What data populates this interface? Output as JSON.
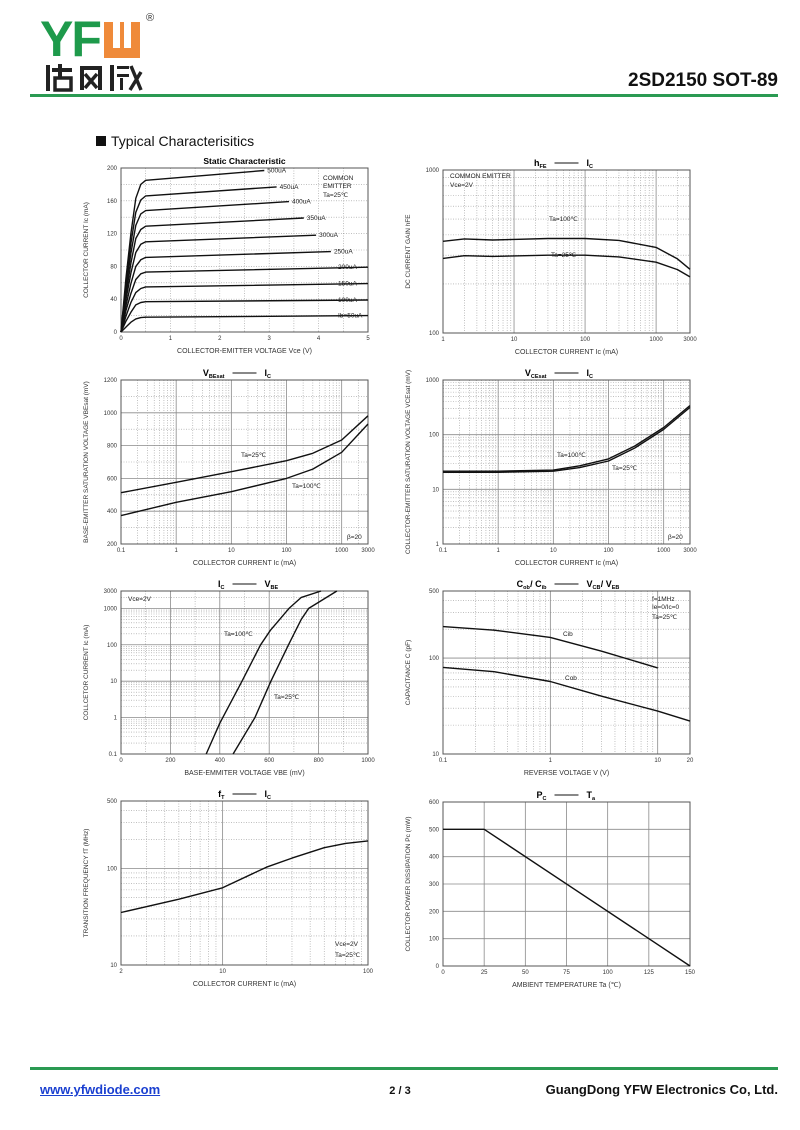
{
  "header": {
    "logo": {
      "latin": "YF",
      "mark": "W",
      "cjk": "佑风微",
      "registered": "®"
    },
    "part_title": "2SD2150  SOT-89",
    "accent_color": "#2a9a52"
  },
  "section_title": "Typical  Characterisitics",
  "footer": {
    "website": "www.yfwdiode.com",
    "page": "2 / 3",
    "company": "GuangDong YFW Electronics Co, Ltd."
  },
  "chart_data": [
    {
      "type": "line",
      "title": {
        "plain": "Static Characteristic"
      },
      "xlabel": "COLLECTOR-EMITTER VOLTAGE   Vce   (V)",
      "ylabel": "COLLECTOR CURRENT   Ic   (mA)",
      "xscale": "linear",
      "yscale": "linear",
      "xlim": [
        0,
        5
      ],
      "ylim": [
        0,
        200
      ],
      "xticks": [
        0,
        1,
        2,
        3,
        4,
        5
      ],
      "xtick_labels": [
        "0",
        "1",
        "2",
        "3",
        "4",
        "5"
      ],
      "yticks": [
        0,
        40,
        80,
        120,
        160,
        200
      ],
      "ytick_labels": [
        "0",
        "40",
        "80",
        "120",
        "160",
        "200"
      ],
      "grid": "dotted",
      "annotations": [
        "COMMON",
        "EMITTER",
        "Ta=25℃"
      ],
      "series": [
        {
          "name": "500uA",
          "points": [
            [
              0,
              0
            ],
            [
              0.1,
              65
            ],
            [
              0.2,
              120
            ],
            [
              0.3,
              163
            ],
            [
              0.4,
              180
            ],
            [
              0.5,
              185
            ],
            [
              2.9,
              197
            ]
          ]
        },
        {
          "name": "450uA",
          "points": [
            [
              0,
              0
            ],
            [
              0.1,
              58
            ],
            [
              0.2,
              108
            ],
            [
              0.3,
              146
            ],
            [
              0.4,
              161
            ],
            [
              0.5,
              166
            ],
            [
              3.15,
              177
            ]
          ]
        },
        {
          "name": "400uA",
          "points": [
            [
              0,
              0
            ],
            [
              0.1,
              52
            ],
            [
              0.2,
              96
            ],
            [
              0.3,
              130
            ],
            [
              0.4,
              144
            ],
            [
              0.5,
              148
            ],
            [
              3.4,
              159
            ]
          ]
        },
        {
          "name": "350uA",
          "points": [
            [
              0,
              0
            ],
            [
              0.1,
              45
            ],
            [
              0.2,
              84
            ],
            [
              0.3,
              114
            ],
            [
              0.4,
              125
            ],
            [
              0.5,
              129
            ],
            [
              3.7,
              139
            ]
          ]
        },
        {
          "name": "300uA",
          "points": [
            [
              0,
              0
            ],
            [
              0.1,
              39
            ],
            [
              0.2,
              72
            ],
            [
              0.3,
              97
            ],
            [
              0.4,
              107
            ],
            [
              0.5,
              110
            ],
            [
              3.95,
              118
            ]
          ]
        },
        {
          "name": "250uA",
          "points": [
            [
              0,
              0
            ],
            [
              0.1,
              32
            ],
            [
              0.2,
              59
            ],
            [
              0.3,
              80
            ],
            [
              0.4,
              88
            ],
            [
              0.5,
              91
            ],
            [
              4.25,
              98
            ]
          ]
        },
        {
          "name": "200uA",
          "points": [
            [
              0,
              0
            ],
            [
              0.1,
              26
            ],
            [
              0.2,
              47
            ],
            [
              0.3,
              64
            ],
            [
              0.4,
              71
            ],
            [
              0.5,
              73
            ],
            [
              5,
              79
            ]
          ]
        },
        {
          "name": "150uA",
          "points": [
            [
              0,
              0
            ],
            [
              0.1,
              19
            ],
            [
              0.2,
              36
            ],
            [
              0.3,
              48
            ],
            [
              0.4,
              53
            ],
            [
              0.5,
              55
            ],
            [
              5,
              59
            ]
          ]
        },
        {
          "name": "100uA",
          "points": [
            [
              0,
              0
            ],
            [
              0.1,
              13
            ],
            [
              0.2,
              24
            ],
            [
              0.3,
              33
            ],
            [
              0.4,
              36
            ],
            [
              0.5,
              37
            ],
            [
              5,
              39
            ]
          ]
        },
        {
          "name": "Ib=50uA",
          "points": [
            [
              0,
              0
            ],
            [
              0.1,
              6
            ],
            [
              0.2,
              12
            ],
            [
              0.3,
              16
            ],
            [
              0.4,
              17.5
            ],
            [
              0.5,
              18
            ],
            [
              5,
              20
            ]
          ]
        }
      ]
    },
    {
      "type": "line",
      "title": {
        "a": "h",
        "a_sub": "FE",
        "b": "I",
        "b_sub": "C"
      },
      "xlabel": "COLLECTOR CURRENT   Ic   (mA)",
      "ylabel": "DC CURRENT GAIN   hFE",
      "xscale": "log",
      "yscale": "log",
      "xlim": [
        1,
        3000
      ],
      "ylim": [
        100,
        1000
      ],
      "xticks": [
        1,
        10,
        100,
        1000,
        3000
      ],
      "xtick_labels": [
        "1",
        "10",
        "100",
        "1000",
        "3000"
      ],
      "yticks": [
        100,
        1000
      ],
      "ytick_labels": [
        "100",
        "1000"
      ],
      "grid": "solid",
      "annotations": [
        "COMMON EMITTER",
        "Vce=2V",
        "Ta=100℃",
        "Ta=25℃"
      ],
      "series": [
        {
          "points": [
            [
              1,
              365
            ],
            [
              2,
              378
            ],
            [
              5,
              372
            ],
            [
              10,
              375
            ],
            [
              30,
              380
            ],
            [
              100,
              380
            ],
            [
              300,
              370
            ],
            [
              1000,
              335
            ],
            [
              2000,
              285
            ],
            [
              3000,
              246
            ]
          ]
        },
        {
          "points": [
            [
              1,
              287
            ],
            [
              2,
              298
            ],
            [
              5,
              295
            ],
            [
              10,
              297
            ],
            [
              30,
              300
            ],
            [
              100,
              300
            ],
            [
              300,
              293
            ],
            [
              1000,
              272
            ],
            [
              2000,
              245
            ],
            [
              3000,
              221
            ]
          ]
        }
      ]
    },
    {
      "type": "line",
      "title": {
        "a": "V",
        "a_sub": "BEsat",
        "b": "I",
        "b_sub": "C"
      },
      "xlabel": "COLLECTOR CURRENT   Ic   (mA)",
      "ylabel": "BASE-EMITTER SATURATION VOLTAGE   VBEsat   (mV)",
      "xscale": "log",
      "yscale": "linear",
      "xlim": [
        0.1,
        3000
      ],
      "ylim": [
        200,
        1200
      ],
      "xticks": [
        0.1,
        1,
        10,
        100,
        1000,
        3000
      ],
      "xtick_labels": [
        "0.1",
        "1",
        "10",
        "100",
        "1000",
        "3000"
      ],
      "yticks": [
        200,
        400,
        600,
        800,
        1000,
        1200
      ],
      "ytick_labels": [
        "200",
        "400",
        "600",
        "800",
        "1000",
        "1200"
      ],
      "grid": "solid",
      "annotations": [
        "Ta=25℃",
        "Ta=100℃",
        "β=20"
      ],
      "series": [
        {
          "points": [
            [
              0.1,
              513
            ],
            [
              1,
              576
            ],
            [
              10,
              641
            ],
            [
              100,
              708
            ],
            [
              300,
              753
            ],
            [
              1000,
              834
            ],
            [
              3000,
              982
            ]
          ]
        },
        {
          "points": [
            [
              0.1,
              373
            ],
            [
              1,
              454
            ],
            [
              10,
              519
            ],
            [
              100,
              600
            ],
            [
              300,
              657
            ],
            [
              1000,
              759
            ],
            [
              3000,
              932
            ]
          ]
        }
      ]
    },
    {
      "type": "line",
      "title": {
        "a": "V",
        "a_sub": "CEsat",
        "b": "I",
        "b_sub": "C"
      },
      "xlabel": "COLLECTOR CURRENT   Ic   (mA)",
      "ylabel": "COLLECTOR-EMITTER SATURATION VOLTAGE   VCEsat   (mV)",
      "xscale": "log",
      "yscale": "log",
      "xlim": [
        0.1,
        3000
      ],
      "ylim": [
        1,
        1000
      ],
      "xticks": [
        0.1,
        1,
        10,
        100,
        1000,
        3000
      ],
      "xtick_labels": [
        "0.1",
        "1",
        "10",
        "100",
        "1000",
        "3000"
      ],
      "yticks": [
        1,
        10,
        100,
        1000
      ],
      "ytick_labels": [
        "1",
        "10",
        "100",
        "1000"
      ],
      "grid": "solid",
      "annotations": [
        "Ta=100℃",
        "Ta=25℃",
        "β=20"
      ],
      "series": [
        {
          "points": [
            [
              0.1,
              21.5
            ],
            [
              1,
              21.5
            ],
            [
              10,
              22.5
            ],
            [
              30,
              27
            ],
            [
              100,
              36
            ],
            [
              300,
              62
            ],
            [
              1000,
              135
            ],
            [
              3000,
              340
            ]
          ]
        },
        {
          "points": [
            [
              0.1,
              20.5
            ],
            [
              1,
              20.5
            ],
            [
              10,
              21.5
            ],
            [
              30,
              25
            ],
            [
              100,
              33
            ],
            [
              300,
              57
            ],
            [
              1000,
              125
            ],
            [
              3000,
              315
            ]
          ]
        }
      ]
    },
    {
      "type": "line",
      "title": {
        "a": "I",
        "a_sub": "C",
        "b": "V",
        "b_sub": "BE"
      },
      "xlabel": "BASE-EMMITER VOLTAGE   VBE   (mV)",
      "ylabel": "COLLCETOR CURRENT   Ic   (mA)",
      "xscale": "linear",
      "yscale": "log",
      "xlim": [
        0,
        1000
      ],
      "ylim": [
        0.1,
        3000
      ],
      "xticks": [
        0,
        200,
        400,
        600,
        800,
        1000
      ],
      "xtick_labels": [
        "0",
        "200",
        "400",
        "600",
        "800",
        "1000"
      ],
      "yticks": [
        0.1,
        1,
        10,
        100,
        1000,
        3000
      ],
      "ytick_labels": [
        "0.1",
        "1",
        "10",
        "100",
        "1000",
        "3000"
      ],
      "grid": "solid",
      "annotations": [
        "Vce=2V",
        "Ta=100℃",
        "Ta=25℃"
      ],
      "series": [
        {
          "points": [
            [
              345,
              0.1
            ],
            [
              400,
              0.7
            ],
            [
              490,
              10
            ],
            [
              565,
              100
            ],
            [
              605,
              250
            ],
            [
              680,
              1000
            ],
            [
              730,
              2000
            ],
            [
              810,
              3000
            ]
          ]
        },
        {
          "points": [
            [
              454,
              0.1
            ],
            [
              542,
              1
            ],
            [
              607,
              10
            ],
            [
              678,
              100
            ],
            [
              730,
              500
            ],
            [
              760,
              1000
            ],
            [
              874,
              3000
            ]
          ]
        }
      ]
    },
    {
      "type": "line",
      "title": {
        "a": "C",
        "a_sub": "ob",
        "a2": "/ C",
        "a2_sub": "ib",
        "b": "V",
        "b_sub": "CB",
        "b2": "/ V",
        "b2_sub": "EB"
      },
      "xlabel": "REVERSE VOLTAGE   V   (V)",
      "ylabel": "CAPACITANCE   C   (pF)",
      "xscale": "log",
      "yscale": "log",
      "xlim": [
        0.1,
        20
      ],
      "ylim": [
        10,
        500
      ],
      "xticks": [
        0.1,
        1,
        10,
        20
      ],
      "xtick_labels": [
        "0.1",
        "1",
        "10",
        "20"
      ],
      "yticks": [
        10,
        100,
        500
      ],
      "ytick_labels": [
        "10",
        "100",
        "500"
      ],
      "grid": "solid",
      "annotations": [
        "f=1MHz",
        "Ie=0/Ic=0",
        "Ta=25℃",
        "Cib",
        "Cob"
      ],
      "series": [
        {
          "points": [
            [
              0.1,
              213
            ],
            [
              0.3,
              195
            ],
            [
              1,
              164
            ],
            [
              3,
              118
            ],
            [
              10,
              79
            ]
          ]
        },
        {
          "points": [
            [
              0.1,
              80
            ],
            [
              0.3,
              72
            ],
            [
              1,
              57
            ],
            [
              3,
              40
            ],
            [
              10,
              28
            ],
            [
              20,
              22
            ]
          ]
        }
      ]
    },
    {
      "type": "line",
      "title": {
        "a": "f",
        "a_sub": "T",
        "b": "I",
        "b_sub": "C"
      },
      "xlabel": "COLLECTOR CURRENT   Ic   (mA)",
      "ylabel": "TRANSITION FREQUENCY   fT   (MHz)",
      "xscale": "log",
      "yscale": "log",
      "xlim": [
        2,
        100
      ],
      "ylim": [
        10,
        500
      ],
      "xticks": [
        2,
        10,
        100
      ],
      "xtick_labels": [
        "2",
        "10",
        "100"
      ],
      "yticks": [
        10,
        100,
        500
      ],
      "ytick_labels": [
        "10",
        "100",
        "500"
      ],
      "grid": "solid",
      "annotations": [
        "Vce=2V",
        "Ta=25℃"
      ],
      "series": [
        {
          "points": [
            [
              2,
              35
            ],
            [
              5,
              48
            ],
            [
              10,
              63
            ],
            [
              20,
              103
            ],
            [
              30,
              128
            ],
            [
              50,
              164
            ],
            [
              70,
              182
            ],
            [
              100,
              193
            ]
          ]
        }
      ]
    },
    {
      "type": "line",
      "title": {
        "a": "P",
        "a_sub": "C",
        "b": "T",
        "b_sub": "a"
      },
      "xlabel": "AMBIENT TEMPERATURE   Ta   (℃)",
      "ylabel": "COLLECTOR POWER DISSIPATION   Pc   (mW)",
      "xscale": "linear",
      "yscale": "linear",
      "xlim": [
        0,
        150
      ],
      "ylim": [
        0,
        600
      ],
      "xticks": [
        0,
        25,
        50,
        75,
        100,
        125,
        150
      ],
      "xtick_labels": [
        "0",
        "25",
        "50",
        "75",
        "100",
        "125",
        "150"
      ],
      "yticks": [
        0,
        100,
        200,
        300,
        400,
        500,
        600
      ],
      "ytick_labels": [
        "0",
        "100",
        "200",
        "300",
        "400",
        "500",
        "600"
      ],
      "grid": "solid-only",
      "annotations": [],
      "series": [
        {
          "points": [
            [
              0,
              500
            ],
            [
              25,
              500
            ],
            [
              150,
              0
            ]
          ]
        }
      ]
    }
  ]
}
